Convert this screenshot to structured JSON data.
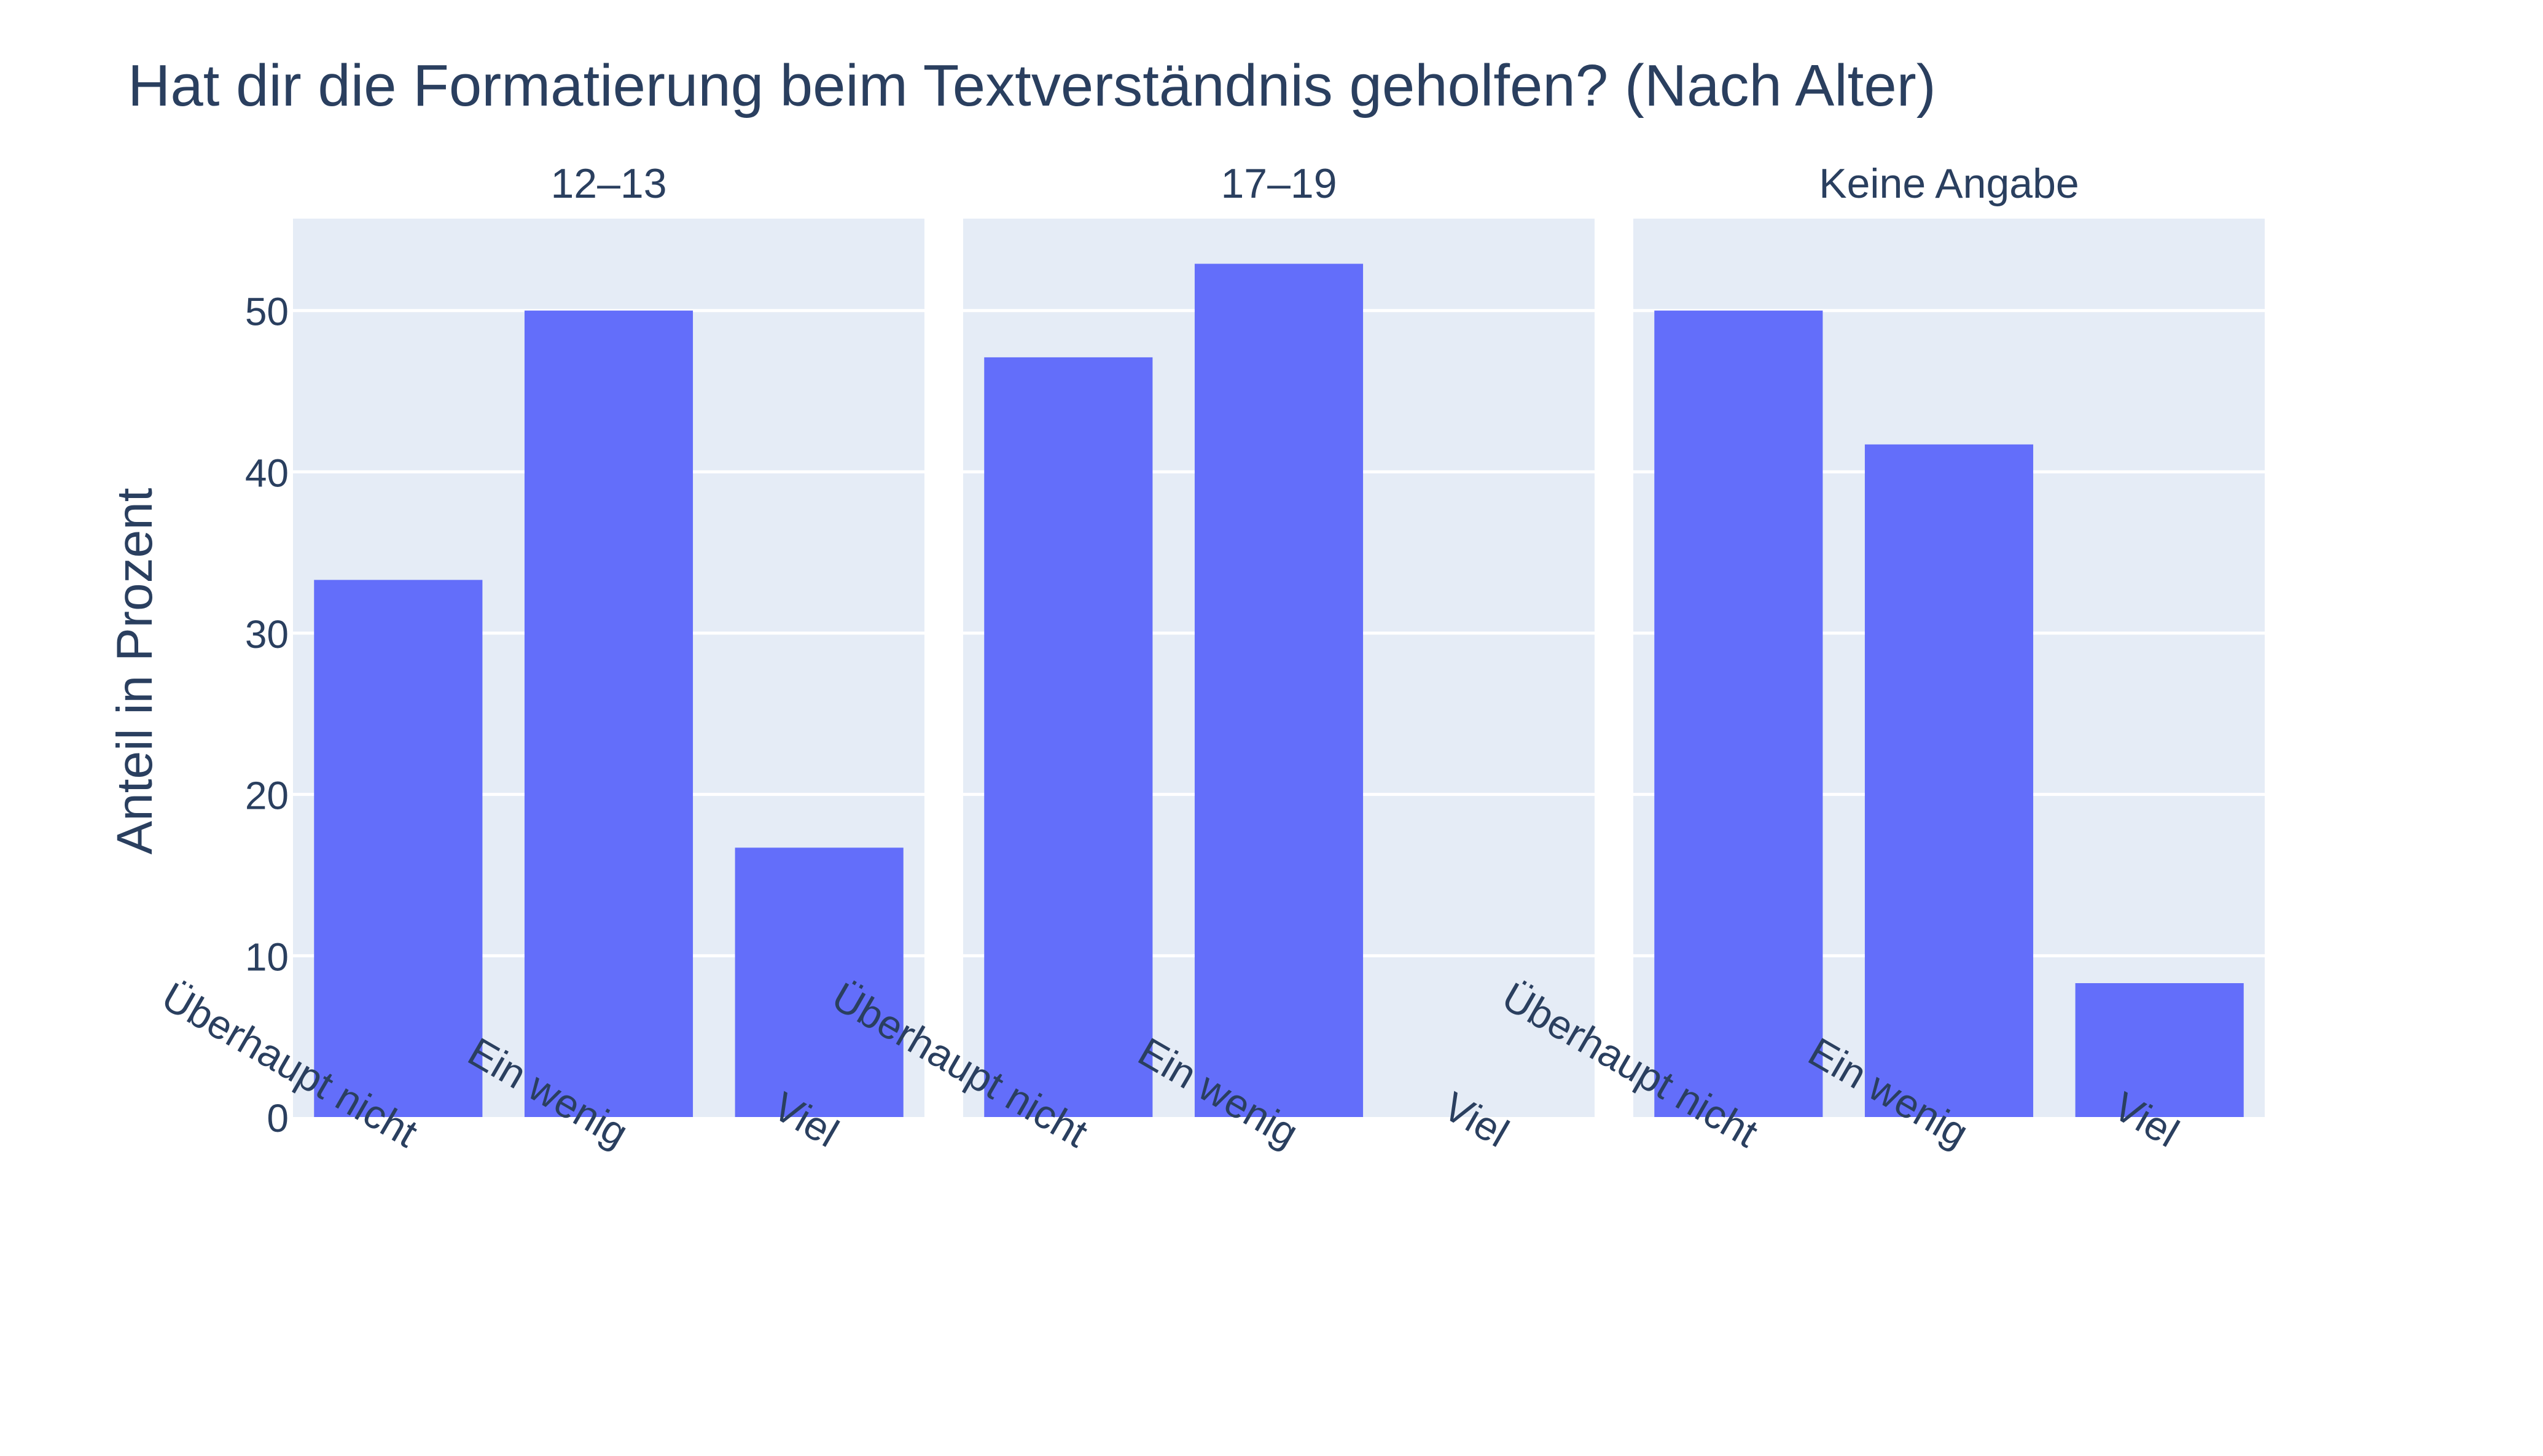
{
  "chart_data": {
    "type": "bar",
    "title": "Hat dir die Formatierung beim Textverständnis geholfen? (Nach Alter)",
    "ylabel": "Anteil in Prozent",
    "xlabel": "",
    "ylim": [
      0,
      55.7
    ],
    "yticks": [
      "0",
      "10",
      "20",
      "30",
      "40",
      "50"
    ],
    "grid": true,
    "colors": {
      "bar": "#636efa",
      "panel_bg": "#e5ecf6",
      "grid": "#ffffff",
      "text": "#2a3f5f"
    },
    "categories": [
      "Überhaupt nicht",
      "Ein wenig",
      "Viel"
    ],
    "panels": [
      {
        "name": "12–13",
        "values": [
          33.3,
          50.0,
          16.7
        ]
      },
      {
        "name": "17–19",
        "values": [
          47.1,
          52.9,
          0
        ]
      },
      {
        "name": "Keine Angabe",
        "values": [
          50.0,
          41.7,
          8.3
        ]
      }
    ]
  }
}
